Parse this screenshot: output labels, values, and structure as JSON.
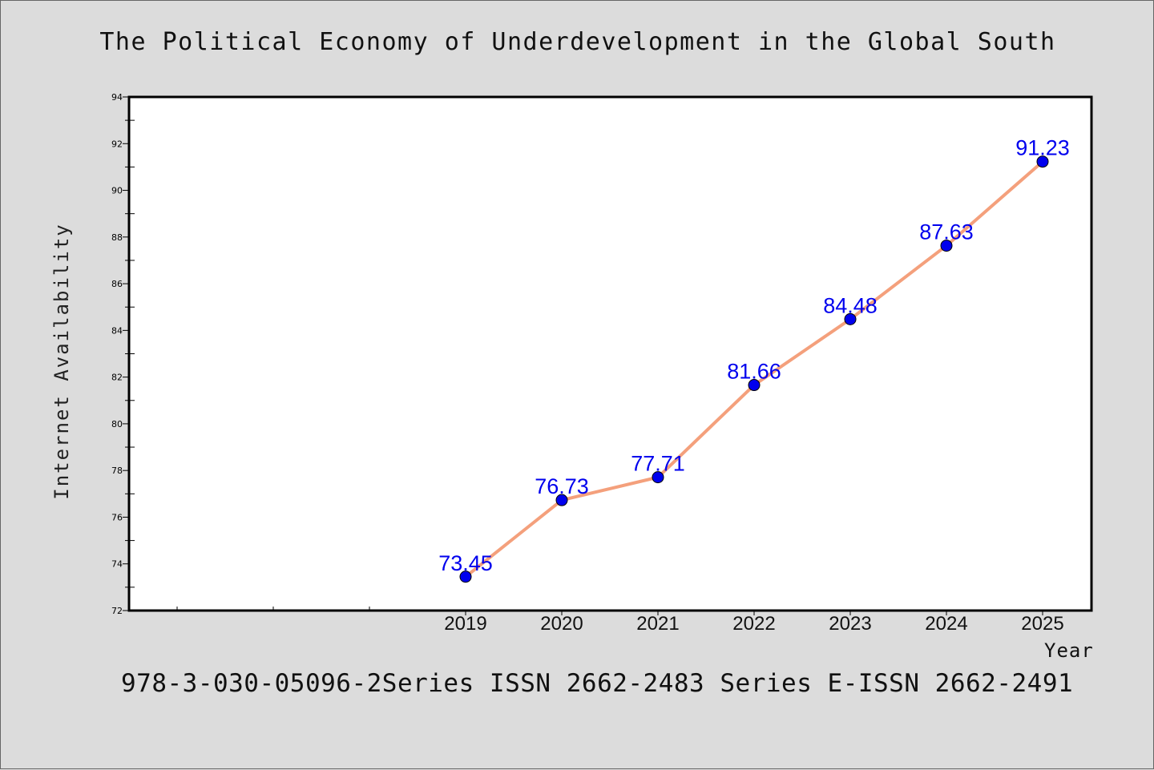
{
  "chart_data": {
    "type": "line",
    "title": "The Political Economy of Underdevelopment in the Global South",
    "xlabel": "Year",
    "ylabel": "Internet Availability",
    "categories": [
      "2019",
      "2020",
      "2021",
      "2022",
      "2023",
      "2024",
      "2025"
    ],
    "values": [
      73.45,
      76.73,
      77.71,
      81.66,
      84.48,
      87.63,
      91.23
    ],
    "data_labels": [
      "73.45",
      "76.73",
      "77.71",
      "81.66",
      "84.48",
      "87.63",
      "91.23"
    ],
    "ylim": [
      72,
      94
    ],
    "yticks": [
      "72",
      "74",
      "76",
      "78",
      "80",
      "82",
      "84",
      "86",
      "88",
      "90",
      "92",
      "94"
    ],
    "grid": false,
    "line_color": "#f4a07c",
    "marker_color": "#0000ee",
    "label_color": "#0000ee"
  },
  "footer": {
    "isbn_text": "978-3-030-05096-2Series ISSN 2662-2483 Series E-ISSN 2662-2491"
  }
}
